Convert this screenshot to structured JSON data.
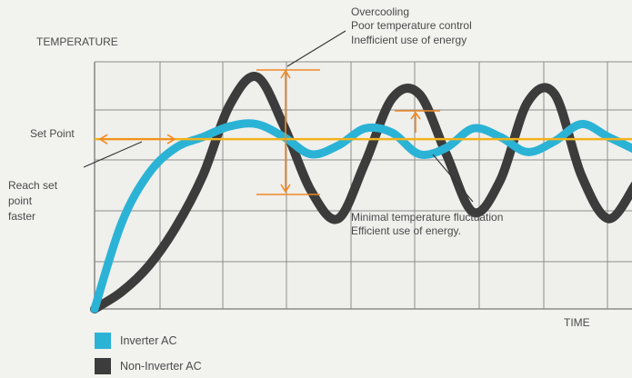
{
  "chart_data": {
    "type": "line",
    "ylabel": "TEMPERATURE",
    "xlabel": "TIME",
    "setpoint_label": "Set Point",
    "setpoint": 0.79,
    "ylim": [
      0,
      1.15
    ],
    "xlim": [
      0,
      10
    ],
    "series": [
      {
        "name": "Inverter AC",
        "color": "#2bb3d6",
        "x": [
          0,
          0.5,
          1,
          1.5,
          2,
          2.5,
          3,
          3.5,
          4,
          4.5,
          5,
          5.5,
          6,
          6.5,
          7,
          7.5,
          8,
          8.5,
          9,
          9.5,
          10
        ],
        "y": [
          0,
          0.4,
          0.63,
          0.75,
          0.8,
          0.85,
          0.86,
          0.8,
          0.72,
          0.76,
          0.84,
          0.82,
          0.72,
          0.75,
          0.84,
          0.8,
          0.73,
          0.78,
          0.86,
          0.8,
          0.74
        ]
      },
      {
        "name": "Non-Inverter AC",
        "color": "#3c3c3c",
        "x": [
          0,
          0.5,
          1,
          1.5,
          2,
          2.5,
          3,
          3.5,
          4,
          4.5,
          5,
          5.5,
          6,
          6.5,
          7,
          7.5,
          8,
          8.5,
          9,
          9.5,
          10
        ],
        "y": [
          0,
          0.08,
          0.2,
          0.38,
          0.62,
          0.95,
          1.08,
          0.85,
          0.55,
          0.42,
          0.68,
          0.98,
          1.0,
          0.72,
          0.45,
          0.6,
          0.96,
          1.0,
          0.62,
          0.42,
          0.58
        ]
      }
    ],
    "annotations": {
      "overcooling": [
        "Overcooling",
        "Poor temperature control",
        "Inefficient use of energy"
      ],
      "minimal": [
        "Minimal temperature fluctuation",
        "Efficient use of energy."
      ],
      "reach": [
        "Reach set",
        "point",
        "faster"
      ]
    },
    "grid": true,
    "legend_position": "bottom-left"
  },
  "colors": {
    "setpoint_line": "#f2b21b",
    "arrows": "#f08a24",
    "grid": "#8c8c8c"
  }
}
